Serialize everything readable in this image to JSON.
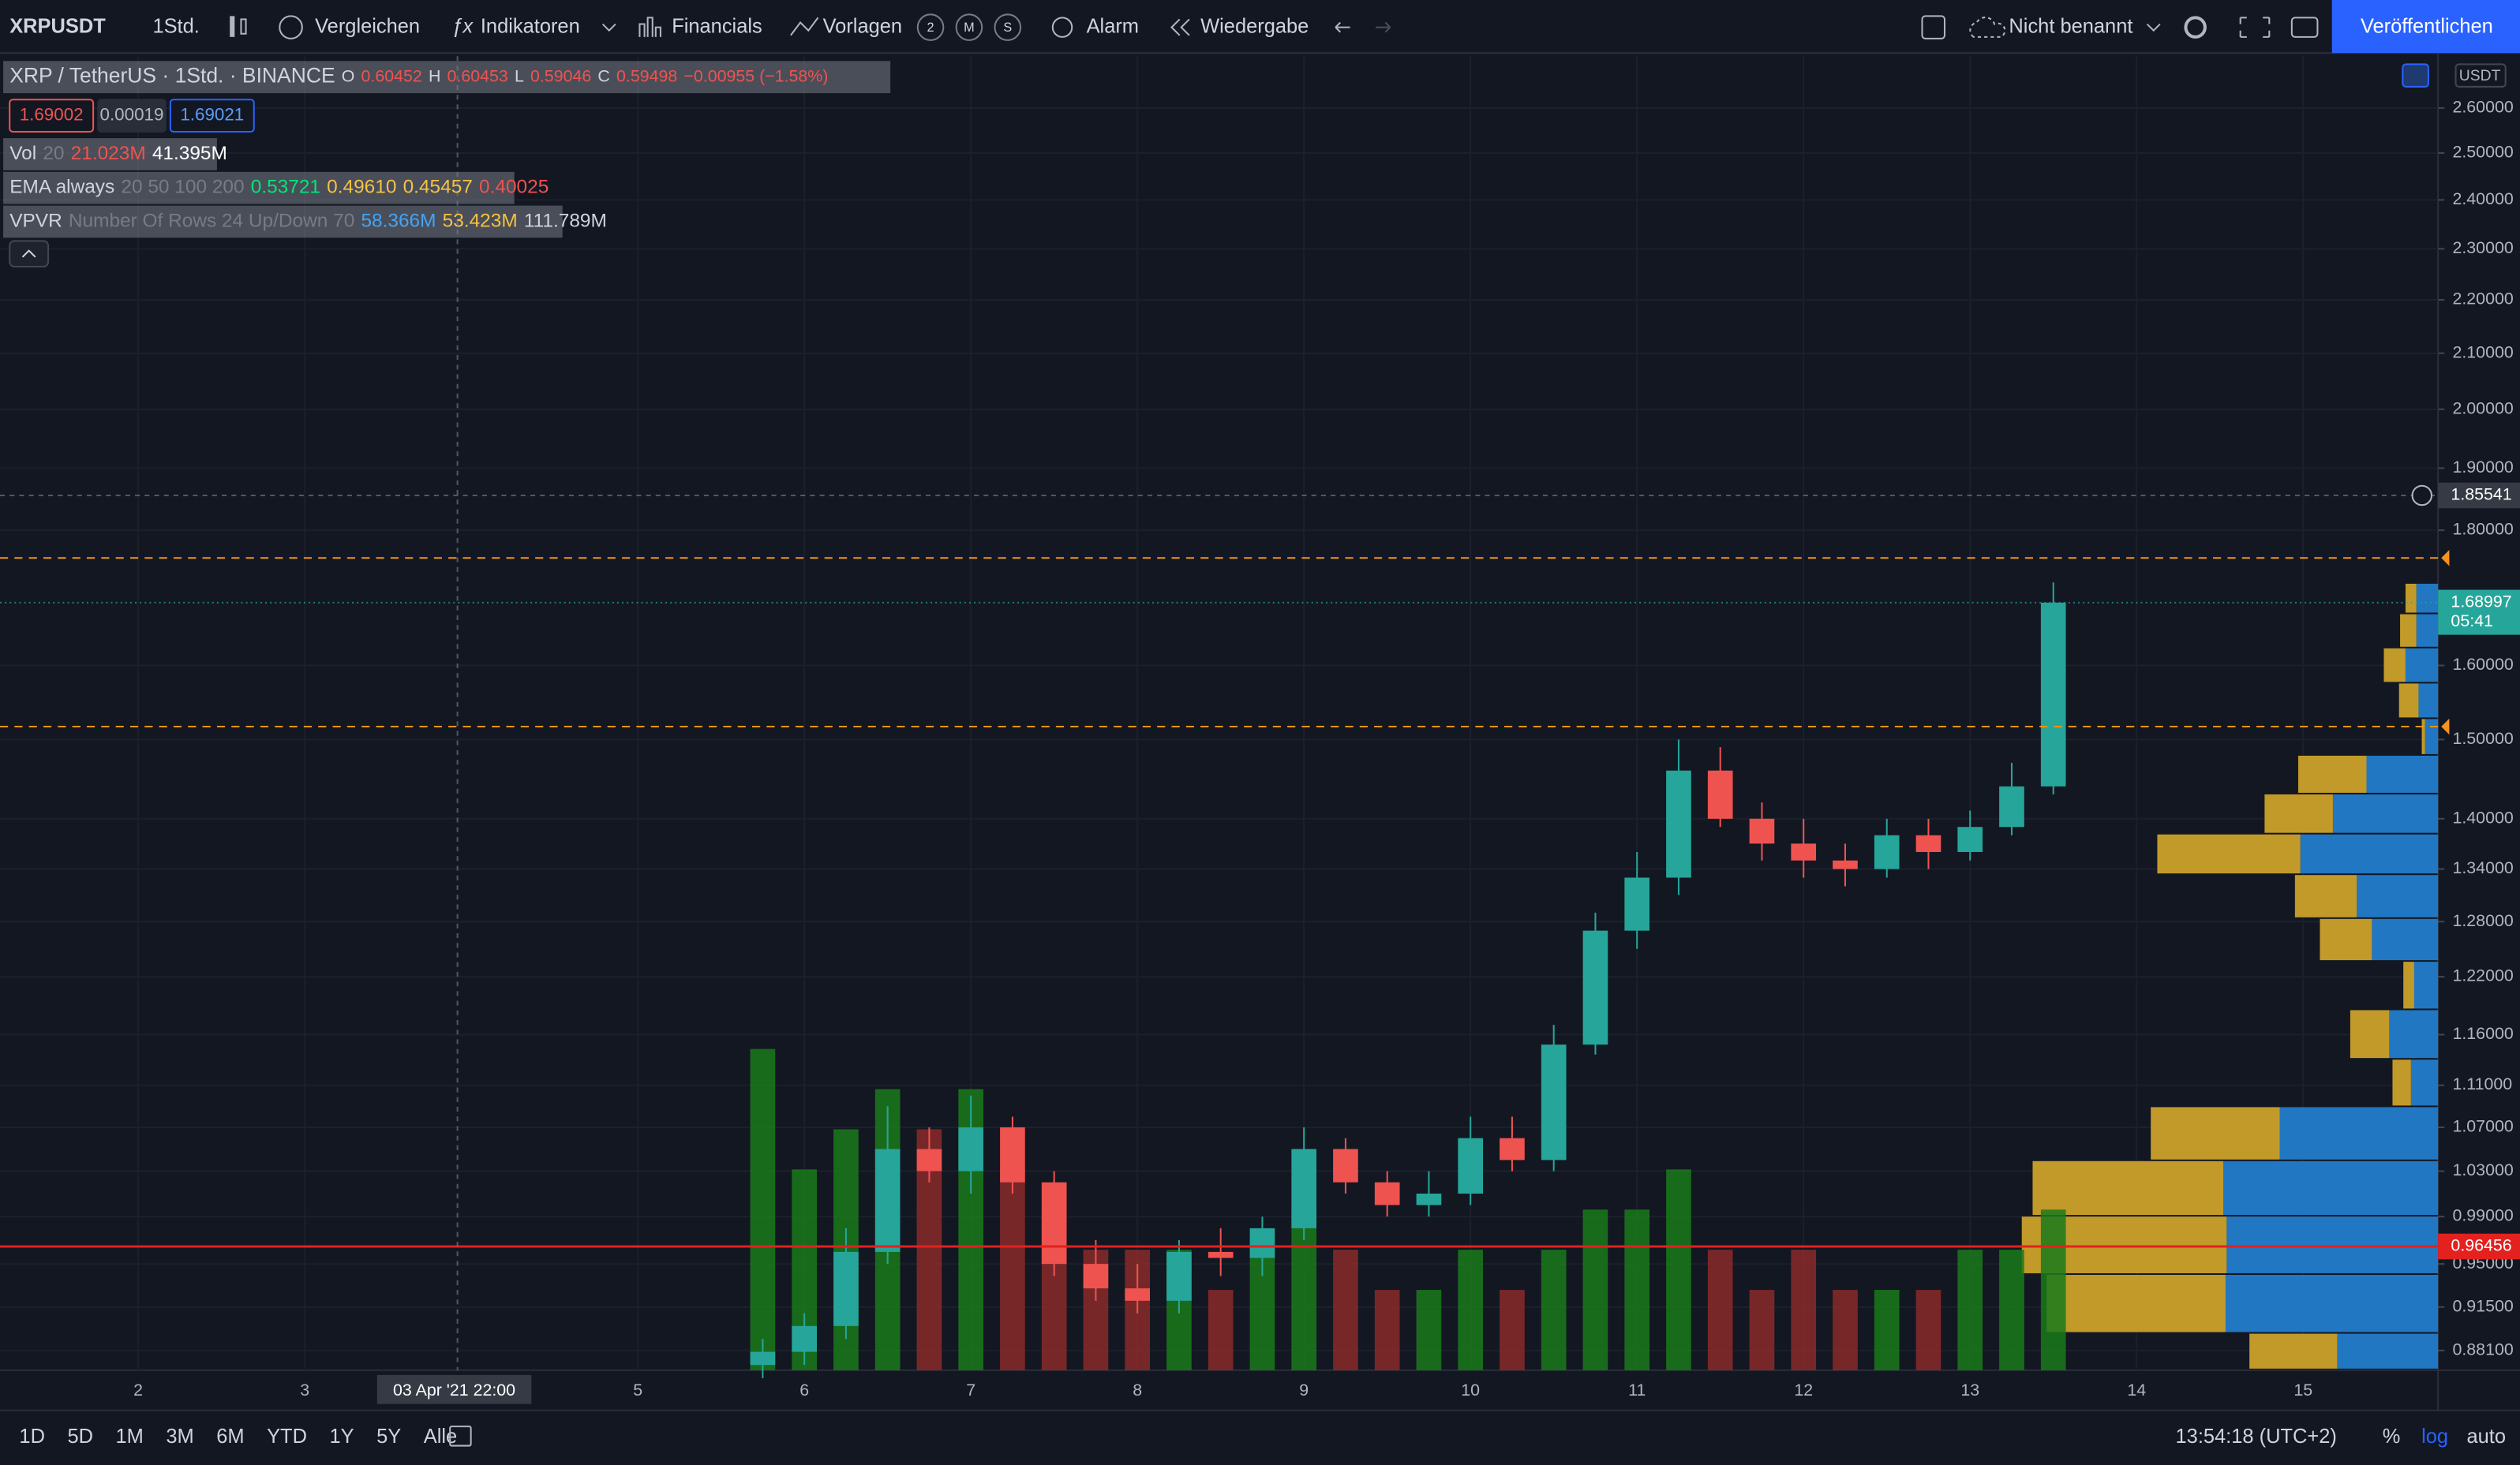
{
  "toolbar": {
    "symbol": "XRPUSDT",
    "interval": "1Std.",
    "compare": "Vergleichen",
    "indicators": "Indikatoren",
    "financials": "Financials",
    "templates": "Vorlagen",
    "template_badges": [
      "2",
      "M",
      "S"
    ],
    "alert": "Alarm",
    "replay": "Wiedergabe",
    "layout_name": "Nicht benannt",
    "publish": "Veröffentlichen"
  },
  "legend": {
    "title": "XRP / TetherUS · 1Std. · BINANCE",
    "ohlc": [
      {
        "key": "O",
        "value": "0.60452"
      },
      {
        "key": "H",
        "value": "0.60453"
      },
      {
        "key": "L",
        "value": "0.59046"
      },
      {
        "key": "C",
        "value": "0.59498"
      }
    ],
    "change": "−0.00955 (−1.58%)",
    "bid": "1.69002",
    "spread": "0.00019",
    "ask": "1.69021",
    "indicators": [
      {
        "name": "Vol",
        "params": "20",
        "values": [
          "21.023M",
          "41.395M"
        ]
      },
      {
        "name": "EMA always",
        "params": "20 50 100 200",
        "values": [
          "0.53721",
          "0.49610",
          "0.45457",
          "0.40025"
        ]
      },
      {
        "name": "VPVR",
        "params": "Number Of Rows 24 Up/Down 70",
        "values": [
          "58.366M",
          "53.423M",
          "111.789M"
        ]
      }
    ]
  },
  "chart_data": {
    "type": "candlestick",
    "log": true,
    "currency": "USDT",
    "x": [
      5.75,
      6,
      6.25,
      6.5,
      6.75,
      7,
      7.25,
      7.5,
      7.75,
      8,
      8.25,
      8.5,
      8.75,
      9,
      9.25,
      9.5,
      9.75,
      10,
      10.25,
      10.5,
      10.75,
      11,
      11.25,
      11.5,
      11.75,
      12,
      12.25,
      12.5,
      12.75,
      13,
      13.25,
      13.5
    ],
    "open": [
      0.87,
      0.88,
      0.9,
      0.96,
      1.05,
      1.03,
      1.07,
      1.02,
      0.95,
      0.93,
      0.92,
      0.96,
      0.955,
      0.98,
      1.05,
      1.02,
      1.0,
      1.01,
      1.06,
      1.04,
      1.15,
      1.27,
      1.33,
      1.46,
      1.4,
      1.37,
      1.35,
      1.34,
      1.38,
      1.36,
      1.39,
      1.44
    ],
    "high": [
      0.89,
      0.91,
      0.98,
      1.09,
      1.07,
      1.1,
      1.08,
      1.03,
      0.97,
      0.95,
      0.97,
      0.98,
      0.99,
      1.07,
      1.06,
      1.03,
      1.03,
      1.08,
      1.08,
      1.17,
      1.29,
      1.36,
      1.5,
      1.49,
      1.42,
      1.4,
      1.37,
      1.4,
      1.4,
      1.41,
      1.47,
      1.72
    ],
    "low": [
      0.86,
      0.87,
      0.89,
      0.95,
      1.02,
      1.01,
      1.01,
      0.94,
      0.92,
      0.91,
      0.91,
      0.94,
      0.94,
      0.97,
      1.01,
      0.99,
      0.99,
      1.0,
      1.03,
      1.03,
      1.14,
      1.25,
      1.31,
      1.39,
      1.35,
      1.33,
      1.32,
      1.33,
      1.34,
      1.35,
      1.38,
      1.43
    ],
    "close": [
      0.88,
      0.9,
      0.96,
      1.05,
      1.03,
      1.07,
      1.02,
      0.95,
      0.93,
      0.92,
      0.96,
      0.955,
      0.98,
      1.05,
      1.02,
      1.0,
      1.01,
      1.06,
      1.04,
      1.15,
      1.27,
      1.33,
      1.46,
      1.4,
      1.37,
      1.35,
      1.34,
      1.38,
      1.36,
      1.39,
      1.44,
      1.68997
    ],
    "volume": [
      8,
      5,
      6,
      7,
      6,
      7,
      5,
      4,
      3,
      3,
      3,
      2,
      3,
      4,
      3,
      2,
      2,
      3,
      2,
      3,
      4,
      4,
      5,
      3,
      2,
      3,
      2,
      2,
      2,
      3,
      3,
      4
    ],
    "countdown": "05:41",
    "marked_price": 0.96456,
    "alert_lines": [
      1.757,
      1.517
    ],
    "crosshair": {
      "x": 3.917,
      "x_label": "03 Apr '21 22:00",
      "y": 1.85541
    },
    "ylim": [
      0.866,
      2.72
    ],
    "xlim": [
      1.17,
      15.81
    ],
    "yticks": [
      {
        "value": 2.6,
        "label": "2.60000"
      },
      {
        "value": 2.5,
        "label": "2.50000"
      },
      {
        "value": 2.4,
        "label": "2.40000"
      },
      {
        "value": 2.3,
        "label": "2.30000"
      },
      {
        "value": 2.2,
        "label": "2.20000"
      },
      {
        "value": 2.1,
        "label": "2.10000"
      },
      {
        "value": 2.0,
        "label": "2.00000"
      },
      {
        "value": 1.9,
        "label": "1.90000"
      },
      {
        "value": 1.8,
        "label": "1.80000"
      },
      {
        "value": 1.6,
        "label": "1.60000"
      },
      {
        "value": 1.5,
        "label": "1.50000"
      },
      {
        "value": 1.4,
        "label": "1.40000"
      },
      {
        "value": 1.34,
        "label": "1.34000"
      },
      {
        "value": 1.28,
        "label": "1.28000"
      },
      {
        "value": 1.22,
        "label": "1.22000"
      },
      {
        "value": 1.16,
        "label": "1.16000"
      },
      {
        "value": 1.11,
        "label": "1.11000"
      },
      {
        "value": 1.07,
        "label": "1.07000"
      },
      {
        "value": 1.03,
        "label": "1.03000"
      },
      {
        "value": 0.99,
        "label": "0.99000"
      },
      {
        "value": 0.95,
        "label": "0.95000"
      },
      {
        "value": 0.915,
        "label": "0.91500"
      },
      {
        "value": 0.881,
        "label": "0.88100"
      }
    ],
    "xticks": [
      2,
      3,
      5,
      6,
      7,
      8,
      9,
      10,
      11,
      12,
      13,
      14,
      15
    ],
    "colors": {
      "up": "#26a69a",
      "down": "#ef5350",
      "vol_up": "#1b7a1b",
      "vol_down": "#8b2a2a",
      "vp_up": "#2177c2",
      "vp_down": "#c29a2a",
      "marked": "#e3211f",
      "alert": "#f7931a"
    },
    "vpvr": {
      "bins": [
        1.718,
        1.673,
        1.624,
        1.575,
        1.527,
        1.479,
        1.43,
        1.381,
        1.333,
        1.283,
        1.236,
        1.185,
        1.135,
        1.089,
        1.039,
        0.99,
        0.941,
        0.894,
        0.866
      ],
      "up": [
        20,
        20,
        30,
        18,
        12,
        66,
        97,
        127,
        75,
        61,
        22,
        45,
        25,
        146,
        198,
        195,
        196,
        93
      ],
      "down": [
        10,
        15,
        20,
        18,
        3,
        63,
        63,
        132,
        57,
        48,
        10,
        36,
        17,
        119,
        176,
        189,
        165,
        81
      ]
    }
  },
  "bottom_bar": {
    "ranges": [
      "1D",
      "5D",
      "1M",
      "3M",
      "6M",
      "YTD",
      "1Y",
      "5Y",
      "Alle"
    ],
    "time": "13:54:18 (UTC+2)",
    "percent": "%",
    "log": "log",
    "auto": "auto"
  }
}
